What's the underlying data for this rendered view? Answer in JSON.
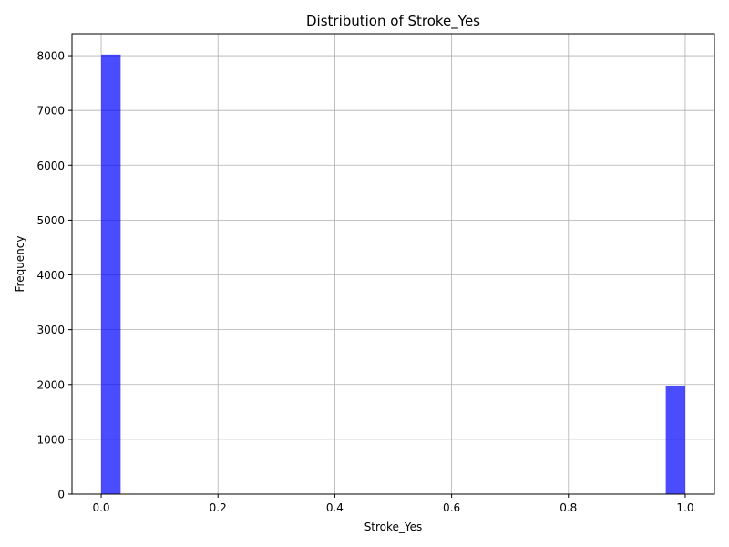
{
  "chart_data": {
    "type": "bar",
    "title": "Distribution of Stroke_Yes",
    "xlabel": "Stroke_Yes",
    "ylabel": "Frequency",
    "xlim": [
      -0.05,
      1.05
    ],
    "ylim": [
      0,
      8400
    ],
    "x_ticks": [
      0.0,
      0.2,
      0.4,
      0.6,
      0.8,
      1.0
    ],
    "x_tick_labels": [
      "0.0",
      "0.2",
      "0.4",
      "0.6",
      "0.8",
      "1.0"
    ],
    "y_ticks": [
      0,
      1000,
      2000,
      3000,
      4000,
      5000,
      6000,
      7000,
      8000
    ],
    "y_tick_labels": [
      "0",
      "1000",
      "2000",
      "3000",
      "4000",
      "5000",
      "6000",
      "7000",
      "8000"
    ],
    "bins": [
      {
        "start": 0.0,
        "end": 0.0333,
        "value": 8020
      },
      {
        "start": 0.9667,
        "end": 1.0,
        "value": 1980
      }
    ],
    "bar_color": "#0000ff",
    "bar_opacity": 0.7,
    "grid": true
  }
}
